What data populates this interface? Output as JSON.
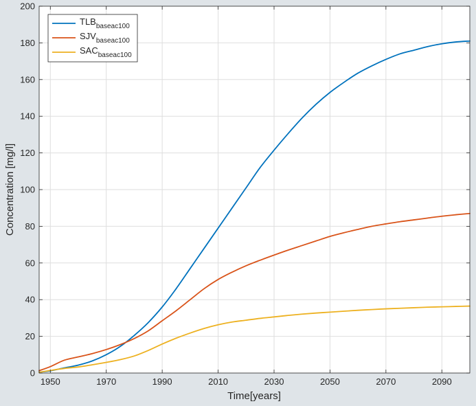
{
  "chart_data": {
    "type": "line",
    "xlabel": "Time[years]",
    "ylabel": "Concentration [mg/l]",
    "xlim": [
      1946,
      2100
    ],
    "ylim": [
      0,
      200
    ],
    "xticks": [
      1950,
      1970,
      1990,
      2010,
      2030,
      2050,
      2070,
      2090
    ],
    "xtick_labels": [
      "1950",
      "1970",
      "1990",
      "2010",
      "2030",
      "2050",
      "2070",
      "2090"
    ],
    "yticks": [
      0,
      20,
      40,
      60,
      80,
      100,
      120,
      140,
      160,
      180,
      200
    ],
    "ytick_labels": [
      "0",
      "20",
      "40",
      "60",
      "80",
      "100",
      "120",
      "140",
      "160",
      "180",
      "200"
    ],
    "grid": true,
    "legend_position": "top-left",
    "series": [
      {
        "name": "TLB",
        "subscript": "baseac100",
        "color": "#0072bd",
        "x": [
          1946,
          1950,
          1955,
          1960,
          1965,
          1970,
          1975,
          1980,
          1985,
          1990,
          1995,
          2000,
          2005,
          2010,
          2015,
          2020,
          2025,
          2030,
          2035,
          2040,
          2045,
          2050,
          2055,
          2060,
          2065,
          2070,
          2075,
          2080,
          2085,
          2090,
          2095,
          2100
        ],
        "y": [
          0.5,
          1.2,
          2.8,
          4.3,
          6.6,
          10,
          14.5,
          20.5,
          27.5,
          36,
          46,
          57,
          68,
          79,
          90,
          101,
          112,
          121.5,
          130.5,
          139,
          146.5,
          153,
          158.5,
          163.5,
          167.5,
          171,
          174,
          176,
          178,
          179.5,
          180.5,
          181
        ]
      },
      {
        "name": "SJV",
        "subscript": "baseac100",
        "color": "#d95319",
        "x": [
          1946,
          1950,
          1955,
          1960,
          1965,
          1970,
          1975,
          1980,
          1985,
          1990,
          1995,
          2000,
          2005,
          2010,
          2015,
          2020,
          2025,
          2030,
          2035,
          2040,
          2045,
          2050,
          2055,
          2060,
          2065,
          2070,
          2075,
          2080,
          2085,
          2090,
          2095,
          2100
        ],
        "y": [
          1.3,
          3.5,
          7,
          8.8,
          10.6,
          12.8,
          15.5,
          18.8,
          23,
          28.5,
          34,
          40,
          46,
          51,
          55,
          58.5,
          61.5,
          64.3,
          67,
          69.5,
          72,
          74.5,
          76.5,
          78.3,
          80,
          81.3,
          82.5,
          83.5,
          84.5,
          85.5,
          86.3,
          87
        ]
      },
      {
        "name": "SAC",
        "subscript": "baseac100",
        "color": "#edb120",
        "x": [
          1946,
          1950,
          1955,
          1960,
          1965,
          1970,
          1975,
          1980,
          1985,
          1990,
          1995,
          2000,
          2005,
          2010,
          2015,
          2020,
          2025,
          2030,
          2035,
          2040,
          2045,
          2050,
          2055,
          2060,
          2065,
          2070,
          2075,
          2080,
          2085,
          2090,
          2095,
          2100
        ],
        "y": [
          0.4,
          1.4,
          2.5,
          3.3,
          4.5,
          5.8,
          7.3,
          9.3,
          12.3,
          15.8,
          19,
          21.8,
          24.3,
          26.3,
          27.8,
          28.8,
          29.8,
          30.6,
          31.4,
          32.1,
          32.7,
          33.2,
          33.7,
          34.2,
          34.6,
          35,
          35.3,
          35.6,
          35.9,
          36.1,
          36.3,
          36.5
        ]
      }
    ]
  }
}
